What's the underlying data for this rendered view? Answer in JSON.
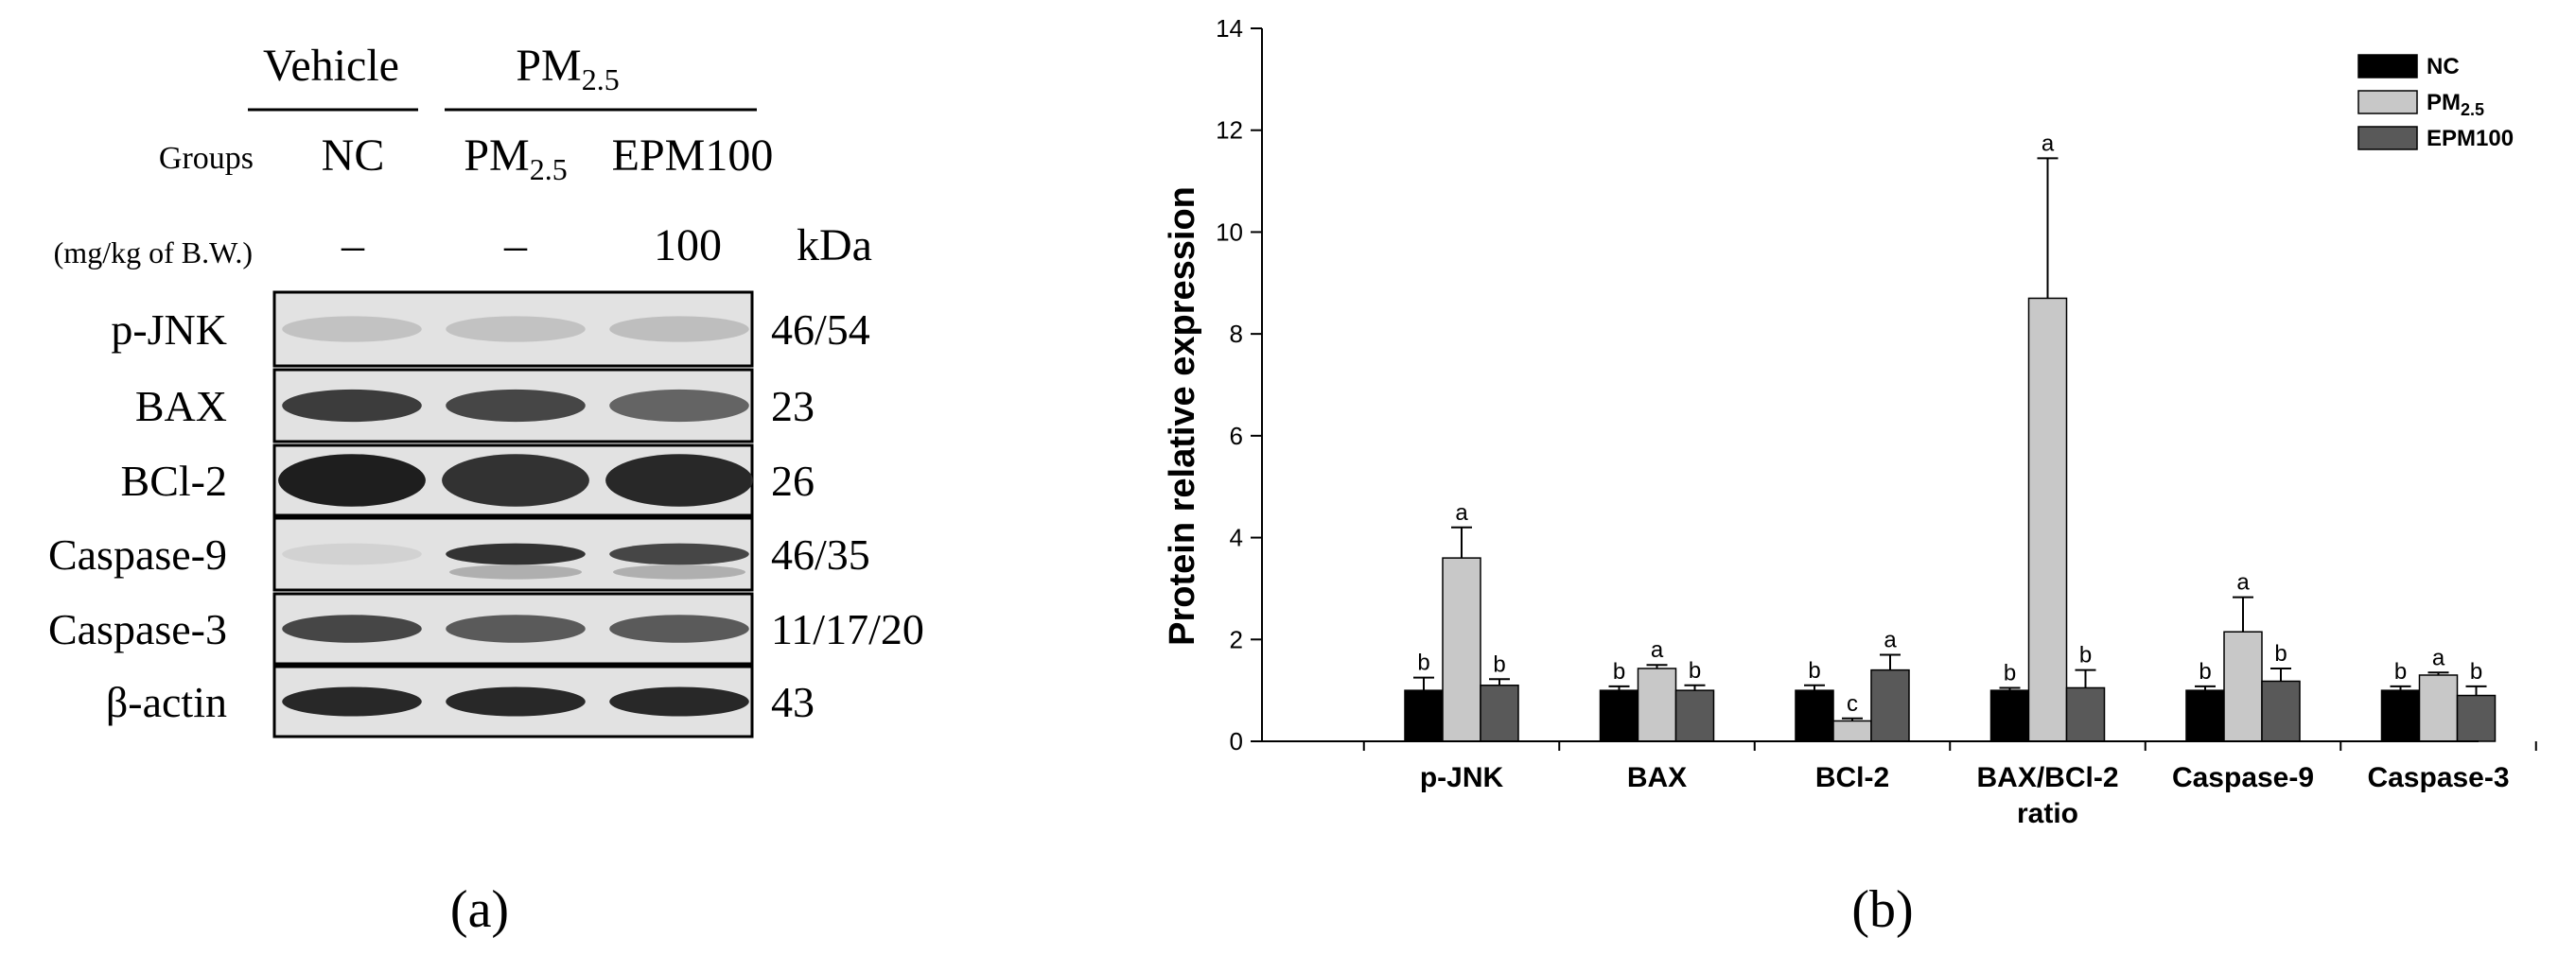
{
  "panel_a": {
    "header": {
      "vehicle": "Vehicle",
      "pm_base": "PM",
      "pm_sub": "2.5"
    },
    "groups_label": "Groups",
    "groups": {
      "nc": "NC",
      "pm_base": "PM",
      "pm_sub": "2.5",
      "epm": "EPM100"
    },
    "dose_label": "(mg/kg of B.W.)",
    "doses": [
      "–",
      "–",
      "100"
    ],
    "kda_label": "kDa",
    "proteins": [
      "p-JNK",
      "BAX",
      "BCl-2",
      "Caspase-9",
      "Caspase-3",
      "β-actin"
    ],
    "kda": [
      "46/54",
      "23",
      "26",
      "46/35",
      "11/17/20",
      "43"
    ],
    "caption": "(a)"
  },
  "panel_b": {
    "caption": "(b)"
  },
  "chart_data": {
    "type": "bar",
    "ylabel": "Protein relative expression",
    "ylim": [
      0,
      14
    ],
    "yticks": [
      "0",
      "2",
      "4",
      "6",
      "8",
      "10",
      "12",
      "14"
    ],
    "categories": [
      "p-JNK",
      "BAX",
      "BCl-2",
      "BAX/BCl-2\nratio",
      "Caspase-9",
      "Caspase-3"
    ],
    "series": [
      {
        "name": "NC",
        "color": "#000000",
        "values": [
          1.0,
          1.0,
          1.0,
          1.0,
          1.0,
          1.0
        ],
        "errors": [
          0.25,
          0.08,
          0.1,
          0.05,
          0.08,
          0.08
        ],
        "letters": [
          "b",
          "b",
          "b",
          "b",
          "b",
          "b"
        ]
      },
      {
        "name_base": "PM",
        "name_sub": "2.5",
        "color": "#c8c8c8",
        "values": [
          3.6,
          1.43,
          0.4,
          8.7,
          2.15,
          1.3
        ],
        "errors": [
          0.6,
          0.07,
          0.05,
          2.75,
          0.68,
          0.05
        ],
        "letters": [
          "a",
          "a",
          "c",
          "a",
          "a",
          "a"
        ]
      },
      {
        "name": "EPM100",
        "color": "#595959",
        "values": [
          1.1,
          1.0,
          1.4,
          1.05,
          1.18,
          0.9
        ],
        "errors": [
          0.12,
          0.1,
          0.3,
          0.35,
          0.25,
          0.18
        ],
        "letters": [
          "b",
          "b",
          "a",
          "b",
          "b",
          "b"
        ]
      }
    ],
    "legend_position": "top-right"
  }
}
